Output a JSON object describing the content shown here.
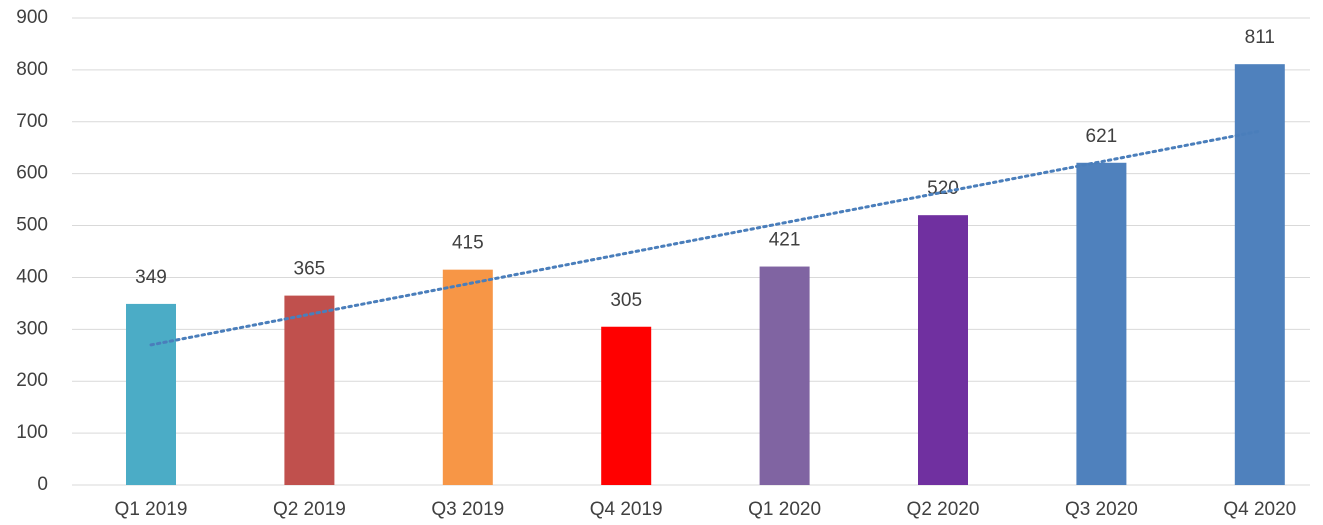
{
  "chart_data": {
    "type": "bar",
    "categories": [
      "Q1 2019",
      "Q2 2019",
      "Q3 2019",
      "Q4 2019",
      "Q1 2020",
      "Q2 2020",
      "Q3 2020",
      "Q4 2020"
    ],
    "values": [
      349,
      365,
      415,
      305,
      421,
      520,
      621,
      811
    ],
    "colors": [
      "#4bacc6",
      "#c0504d",
      "#f79646",
      "#ff0000",
      "#8064a2",
      "#7030a0",
      "#4f81bd",
      "#4f81bd"
    ],
    "ylim": [
      0,
      900
    ],
    "yticks": [
      0,
      100,
      200,
      300,
      400,
      500,
      600,
      700,
      800,
      900
    ],
    "grid": true,
    "trendline": {
      "start": 270,
      "end": 682,
      "color": "#4a7ebb"
    }
  }
}
